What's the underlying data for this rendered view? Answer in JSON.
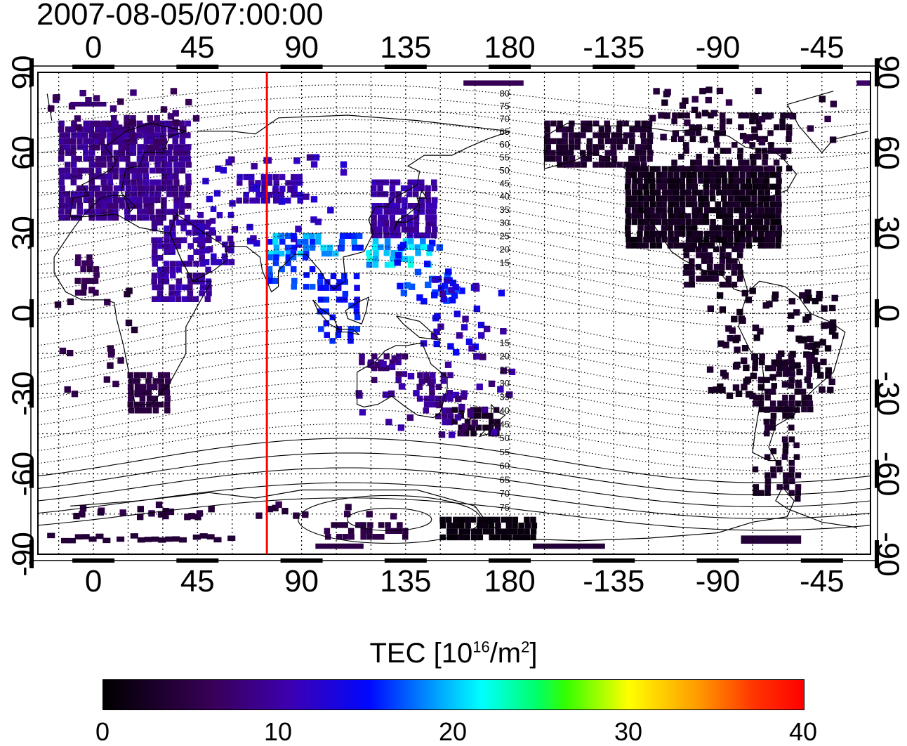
{
  "title": "2007-08-05/07:00:00",
  "lon_ticks": [
    "0",
    "45",
    "90",
    "135",
    "180",
    "-135",
    "-90",
    "-45"
  ],
  "lat_ticks": [
    "90",
    "60",
    "30",
    "0",
    "-30",
    "-60",
    "-90"
  ],
  "magnetic_lat_labels": [
    "80",
    "75",
    "70",
    "65",
    "60",
    "55",
    "50",
    "45",
    "40",
    "35",
    "30",
    "25",
    "20",
    "15",
    "15",
    "20",
    "25",
    "30",
    "35",
    "40",
    "45",
    "50",
    "55",
    "60",
    "65",
    "70",
    "75"
  ],
  "colorbar": {
    "label_main": "TEC  [10",
    "label_exp": "16",
    "label_mid": "/m",
    "label_sq": "2",
    "label_end": "]",
    "ticks": [
      "0",
      "10",
      "20",
      "30",
      "40"
    ],
    "min": 0,
    "max": 40
  },
  "map": {
    "lon_range": [
      -24,
      336
    ],
    "lat_range": [
      -90,
      90
    ],
    "reference_meridian_lon": 75,
    "reference_meridian_color": "#ff0000"
  }
}
